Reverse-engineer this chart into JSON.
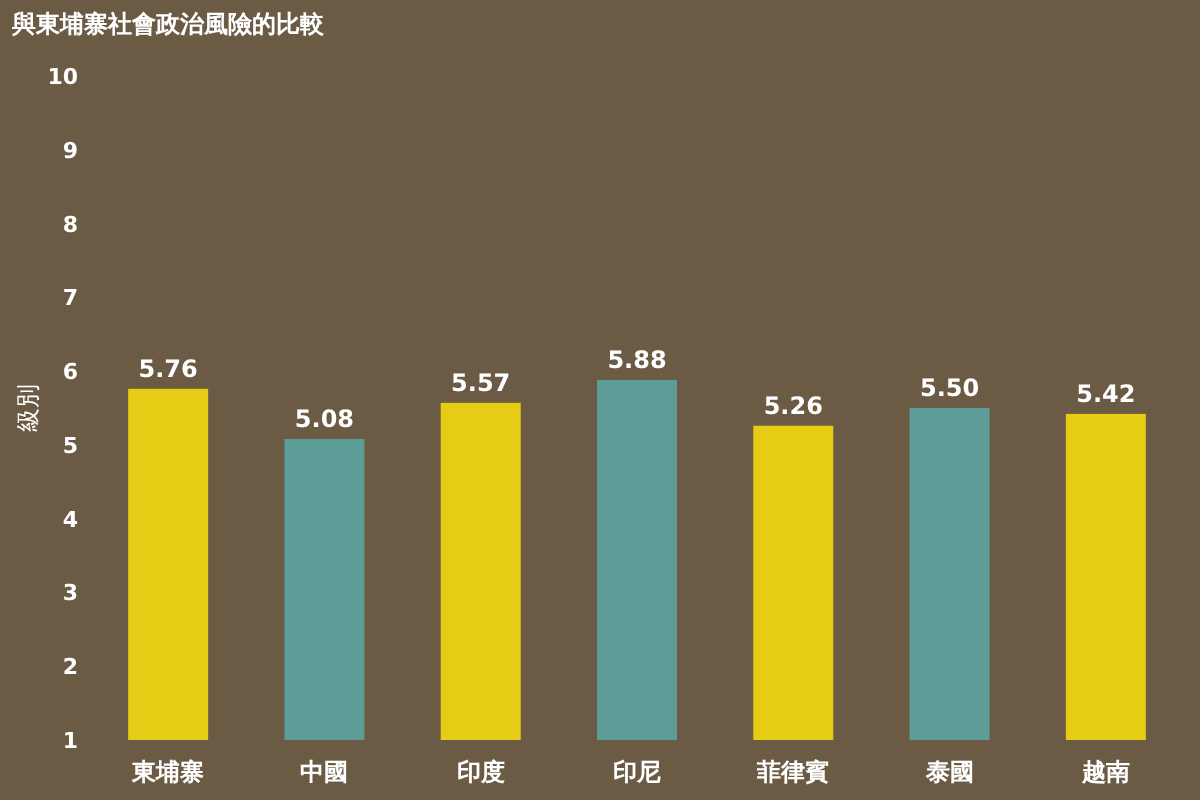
{
  "chart_data": {
    "type": "bar",
    "title": "與東埔寨社會政治風險的比較",
    "ylabel": "級別",
    "categories": [
      "東埔寨",
      "中國",
      "印度",
      "印尼",
      "菲律賓",
      "泰國",
      "越南"
    ],
    "values": [
      5.76,
      5.08,
      5.57,
      5.88,
      5.26,
      5.5,
      5.42
    ],
    "colors": [
      "#e6cc14",
      "#5e9c98",
      "#e6cc14",
      "#5e9c98",
      "#e6cc14",
      "#5e9c98",
      "#e6cc14"
    ],
    "ylim": [
      1,
      10
    ],
    "yticks": [
      1,
      2,
      3,
      4,
      5,
      6,
      7,
      8,
      9,
      10
    ],
    "value_labels": [
      "5.76",
      "5.08",
      "5.57",
      "5.88",
      "5.26",
      "5.50",
      "5.42"
    ],
    "grid": false
  }
}
